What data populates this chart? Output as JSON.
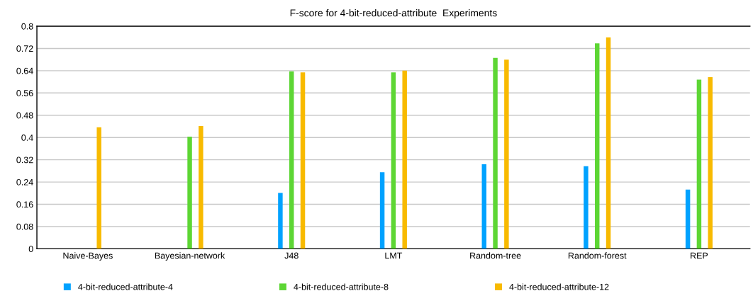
{
  "chart_data": {
    "type": "bar",
    "title": "F-score for 4-bit-reduced-attribute  Experiments",
    "categories": [
      "Naive-Bayes",
      "Bayesian-network",
      "J48",
      "LMT",
      "Random-tree",
      "Random-forest",
      "REP"
    ],
    "series": [
      {
        "name": "4-bit-reduced-attribute-4",
        "color": "#00a2ff",
        "values": [
          null,
          null,
          0.201,
          0.275,
          0.304,
          0.297,
          0.213
        ]
      },
      {
        "name": "4-bit-reduced-attribute-8",
        "color": "#5dd634",
        "values": [
          null,
          0.403,
          0.638,
          0.634,
          0.686,
          0.738,
          0.608
        ]
      },
      {
        "name": "4-bit-reduced-attribute-12",
        "color": "#f8ba00",
        "values": [
          0.437,
          0.441,
          0.634,
          0.64,
          0.68,
          0.76,
          0.617
        ]
      }
    ],
    "ylim": [
      0,
      0.8
    ],
    "yticks": [
      0,
      0.08,
      0.16,
      0.24,
      0.32,
      0.4,
      0.48,
      0.56,
      0.64,
      0.72,
      0.8
    ],
    "grid": "y",
    "legend": "bottom"
  }
}
